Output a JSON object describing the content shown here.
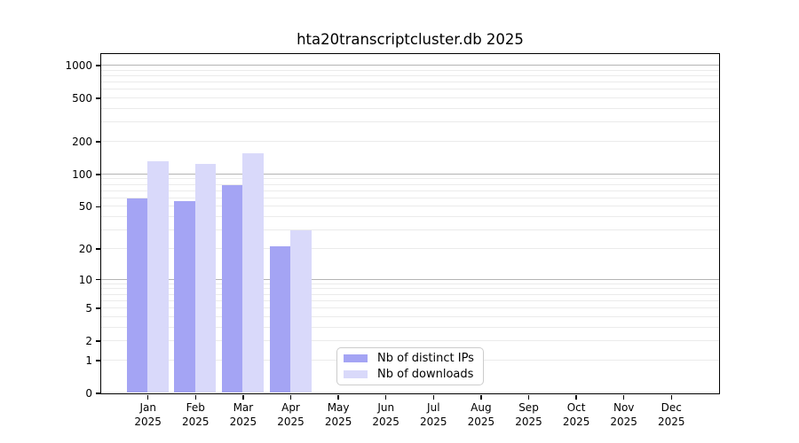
{
  "chart_data": {
    "type": "bar",
    "title": "hta20transcriptcluster.db 2025",
    "scale": "log1p (position proportional to log10(1+value), 0 at baseline)",
    "categories": [
      "Jan",
      "Feb",
      "Mar",
      "Apr",
      "May",
      "Jun",
      "Jul",
      "Aug",
      "Sep",
      "Oct",
      "Nov",
      "Dec"
    ],
    "year": "2025",
    "series": [
      {
        "name": "Nb of distinct IPs",
        "color": "#a4a4f4",
        "values": [
          59,
          56,
          79,
          21,
          0,
          0,
          0,
          0,
          0,
          0,
          0,
          0
        ]
      },
      {
        "name": "Nb of downloads",
        "color": "#d9d9fa",
        "values": [
          132,
          124,
          156,
          30,
          0,
          0,
          0,
          0,
          0,
          0,
          0,
          0
        ]
      }
    ],
    "y_ticks": [
      0,
      1,
      2,
      5,
      10,
      20,
      50,
      100,
      200,
      500,
      1000
    ],
    "ylim": [
      0,
      1276
    ],
    "xlabel": "",
    "ylabel": "",
    "grid": {
      "grid_on": true,
      "major_values": [
        10,
        100,
        1000
      ],
      "major_color": "#b4b4b4",
      "minor_color": "#ebebeb"
    },
    "legend": {
      "position": "inside plot, lower center",
      "labels": [
        "Nb of distinct IPs",
        "Nb of downloads"
      ]
    }
  },
  "colors": {
    "background": "#ffffff",
    "axis": "#000000",
    "text": "#000000"
  }
}
